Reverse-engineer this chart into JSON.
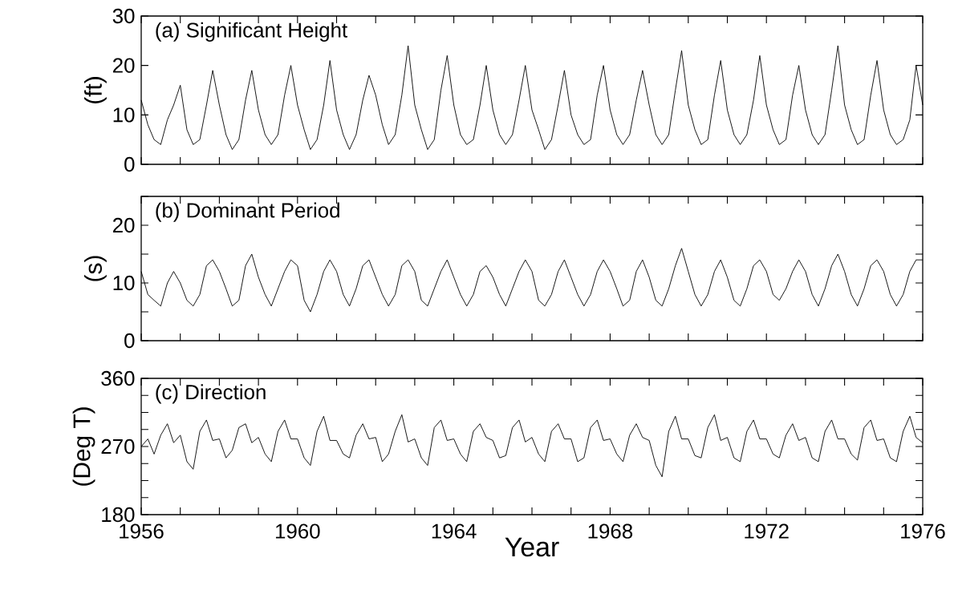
{
  "chart_data": [
    {
      "type": "line",
      "title": "(a) Significant Height",
      "ylabel": "(ft)",
      "tick_labels": "y",
      "x": [
        1956,
        1956.17,
        1956.33,
        1956.5,
        1956.67,
        1956.83,
        1957,
        1957.17,
        1957.33,
        1957.5,
        1957.67,
        1957.83,
        1958,
        1958.17,
        1958.33,
        1958.5,
        1958.67,
        1958.83,
        1959,
        1959.17,
        1959.33,
        1959.5,
        1959.67,
        1959.83,
        1960,
        1960.17,
        1960.33,
        1960.5,
        1960.67,
        1960.83,
        1961,
        1961.17,
        1961.33,
        1961.5,
        1961.67,
        1961.83,
        1962,
        1962.17,
        1962.33,
        1962.5,
        1962.67,
        1962.83,
        1963,
        1963.17,
        1963.33,
        1963.5,
        1963.67,
        1963.83,
        1964,
        1964.17,
        1964.33,
        1964.5,
        1964.67,
        1964.83,
        1965,
        1965.17,
        1965.33,
        1965.5,
        1965.67,
        1965.83,
        1966,
        1966.17,
        1966.33,
        1966.5,
        1966.67,
        1966.83,
        1967,
        1967.17,
        1967.33,
        1967.5,
        1967.67,
        1967.83,
        1968,
        1968.17,
        1968.33,
        1968.5,
        1968.67,
        1968.83,
        1969,
        1969.17,
        1969.33,
        1969.5,
        1969.67,
        1969.83,
        1970,
        1970.17,
        1970.33,
        1970.5,
        1970.67,
        1970.83,
        1971,
        1971.17,
        1971.33,
        1971.5,
        1971.67,
        1971.83,
        1972,
        1972.17,
        1972.33,
        1972.5,
        1972.67,
        1972.83,
        1973,
        1973.17,
        1973.33,
        1973.5,
        1973.67,
        1973.83,
        1974,
        1974.17,
        1974.33,
        1974.5,
        1974.67,
        1974.83,
        1975,
        1975.17,
        1975.33,
        1975.5,
        1975.67,
        1975.83,
        1976
      ],
      "series": [
        {
          "color": "#000000",
          "values": [
            13,
            8,
            5,
            4,
            9,
            12,
            16,
            7,
            4,
            5,
            12,
            19,
            12,
            6,
            3,
            5,
            13,
            19,
            11,
            6,
            4,
            6,
            14,
            20,
            12,
            7,
            3,
            5,
            12,
            21,
            11,
            6,
            3,
            6,
            13,
            18,
            14,
            8,
            4,
            6,
            14,
            24,
            12,
            7,
            3,
            5,
            15,
            22,
            12,
            6,
            4,
            5,
            12,
            20,
            11,
            6,
            4,
            6,
            13,
            20,
            11,
            7,
            3,
            5,
            12,
            19,
            10,
            6,
            4,
            5,
            14,
            20,
            11,
            6,
            4,
            6,
            13,
            19,
            12,
            6,
            4,
            6,
            15,
            23,
            12,
            7,
            4,
            5,
            14,
            21,
            11,
            6,
            4,
            6,
            13,
            22,
            12,
            7,
            4,
            5,
            14,
            20,
            11,
            6,
            4,
            6,
            15,
            24,
            12,
            7,
            4,
            5,
            14,
            21,
            11,
            6,
            4,
            5,
            9,
            20,
            12
          ]
        }
      ],
      "xlim": [
        1956,
        1976
      ],
      "xticks": [
        1956,
        {
          "value": 1957,
          "label": null
        },
        {
          "value": 1958,
          "label": null
        },
        {
          "value": 1959,
          "label": null
        },
        1960,
        {
          "value": 1961,
          "label": null
        },
        {
          "value": 1962,
          "label": null
        },
        {
          "value": 1963,
          "label": null
        },
        1964,
        {
          "value": 1965,
          "label": null
        },
        {
          "value": 1966,
          "label": null
        },
        {
          "value": 1967,
          "label": null
        },
        1968,
        {
          "value": 1969,
          "label": null
        },
        {
          "value": 1970,
          "label": null
        },
        {
          "value": 1971,
          "label": null
        },
        1972,
        {
          "value": 1973,
          "label": null
        },
        {
          "value": 1974,
          "label": null
        },
        {
          "value": 1975,
          "label": null
        },
        1976
      ],
      "ylim": [
        0,
        30
      ],
      "yticks": [
        0,
        10,
        20,
        30
      ]
    },
    {
      "type": "line",
      "title": "(b) Dominant Period",
      "ylabel": "(s)",
      "tick_labels": "y",
      "x": [
        1956,
        1956.17,
        1956.33,
        1956.5,
        1956.67,
        1956.83,
        1957,
        1957.17,
        1957.33,
        1957.5,
        1957.67,
        1957.83,
        1958,
        1958.17,
        1958.33,
        1958.5,
        1958.67,
        1958.83,
        1959,
        1959.17,
        1959.33,
        1959.5,
        1959.67,
        1959.83,
        1960,
        1960.17,
        1960.33,
        1960.5,
        1960.67,
        1960.83,
        1961,
        1961.17,
        1961.33,
        1961.5,
        1961.67,
        1961.83,
        1962,
        1962.17,
        1962.33,
        1962.5,
        1962.67,
        1962.83,
        1963,
        1963.17,
        1963.33,
        1963.5,
        1963.67,
        1963.83,
        1964,
        1964.17,
        1964.33,
        1964.5,
        1964.67,
        1964.83,
        1965,
        1965.17,
        1965.33,
        1965.5,
        1965.67,
        1965.83,
        1966,
        1966.17,
        1966.33,
        1966.5,
        1966.67,
        1966.83,
        1967,
        1967.17,
        1967.33,
        1967.5,
        1967.67,
        1967.83,
        1968,
        1968.17,
        1968.33,
        1968.5,
        1968.67,
        1968.83,
        1969,
        1969.17,
        1969.33,
        1969.5,
        1969.67,
        1969.83,
        1970,
        1970.17,
        1970.33,
        1970.5,
        1970.67,
        1970.83,
        1971,
        1971.17,
        1971.33,
        1971.5,
        1971.67,
        1971.83,
        1972,
        1972.17,
        1972.33,
        1972.5,
        1972.67,
        1972.83,
        1973,
        1973.17,
        1973.33,
        1973.5,
        1973.67,
        1973.83,
        1974,
        1974.17,
        1974.33,
        1974.5,
        1974.67,
        1974.83,
        1975,
        1975.17,
        1975.33,
        1975.5,
        1975.67,
        1975.83,
        1976
      ],
      "series": [
        {
          "color": "#000000",
          "values": [
            12,
            8,
            7,
            6,
            10,
            12,
            10,
            7,
            6,
            8,
            13,
            14,
            12,
            9,
            6,
            7,
            13,
            15,
            11,
            8,
            6,
            9,
            12,
            14,
            13,
            7,
            5,
            8,
            12,
            14,
            12,
            8,
            6,
            9,
            13,
            14,
            11,
            8,
            6,
            8,
            13,
            14,
            12,
            7,
            6,
            9,
            12,
            14,
            11,
            8,
            6,
            8,
            12,
            13,
            11,
            8,
            6,
            9,
            12,
            14,
            12,
            7,
            6,
            8,
            12,
            14,
            11,
            8,
            6,
            8,
            12,
            14,
            12,
            9,
            6,
            7,
            12,
            14,
            11,
            7,
            6,
            9,
            13,
            16,
            12,
            8,
            6,
            8,
            12,
            14,
            11,
            7,
            6,
            9,
            13,
            14,
            12,
            8,
            7,
            9,
            12,
            14,
            12,
            8,
            6,
            9,
            13,
            15,
            12,
            8,
            6,
            9,
            13,
            14,
            12,
            8,
            6,
            8,
            12,
            14,
            14
          ]
        }
      ],
      "xlim": [
        1956,
        1976
      ],
      "xticks": [
        1956,
        {
          "value": 1957,
          "label": null
        },
        {
          "value": 1958,
          "label": null
        },
        {
          "value": 1959,
          "label": null
        },
        1960,
        {
          "value": 1961,
          "label": null
        },
        {
          "value": 1962,
          "label": null
        },
        {
          "value": 1963,
          "label": null
        },
        1964,
        {
          "value": 1965,
          "label": null
        },
        {
          "value": 1966,
          "label": null
        },
        {
          "value": 1967,
          "label": null
        },
        1968,
        {
          "value": 1969,
          "label": null
        },
        {
          "value": 1970,
          "label": null
        },
        {
          "value": 1971,
          "label": null
        },
        1972,
        {
          "value": 1973,
          "label": null
        },
        {
          "value": 1974,
          "label": null
        },
        {
          "value": 1975,
          "label": null
        },
        1976
      ],
      "ylim": [
        0,
        25
      ],
      "yticks": [
        0,
        {
          "value": 5,
          "label": null
        },
        10,
        {
          "value": 15,
          "label": null
        },
        20,
        {
          "value": 25,
          "label": null
        }
      ]
    },
    {
      "type": "line",
      "title": "(c) Direction",
      "ylabel": "(Deg T)",
      "xlabel": "Year",
      "x": [
        1956,
        1956.17,
        1956.33,
        1956.5,
        1956.67,
        1956.83,
        1957,
        1957.17,
        1957.33,
        1957.5,
        1957.67,
        1957.83,
        1958,
        1958.17,
        1958.33,
        1958.5,
        1958.67,
        1958.83,
        1959,
        1959.17,
        1959.33,
        1959.5,
        1959.67,
        1959.83,
        1960,
        1960.17,
        1960.33,
        1960.5,
        1960.67,
        1960.83,
        1961,
        1961.17,
        1961.33,
        1961.5,
        1961.67,
        1961.83,
        1962,
        1962.17,
        1962.33,
        1962.5,
        1962.67,
        1962.83,
        1963,
        1963.17,
        1963.33,
        1963.5,
        1963.67,
        1963.83,
        1964,
        1964.17,
        1964.33,
        1964.5,
        1964.67,
        1964.83,
        1965,
        1965.17,
        1965.33,
        1965.5,
        1965.67,
        1965.83,
        1966,
        1966.17,
        1966.33,
        1966.5,
        1966.67,
        1966.83,
        1967,
        1967.17,
        1967.33,
        1967.5,
        1967.67,
        1967.83,
        1968,
        1968.17,
        1968.33,
        1968.5,
        1968.67,
        1968.83,
        1969,
        1969.17,
        1969.33,
        1969.5,
        1969.67,
        1969.83,
        1970,
        1970.17,
        1970.33,
        1970.5,
        1970.67,
        1970.83,
        1971,
        1971.17,
        1971.33,
        1971.5,
        1971.67,
        1971.83,
        1972,
        1972.17,
        1972.33,
        1972.5,
        1972.67,
        1972.83,
        1973,
        1973.17,
        1973.33,
        1973.5,
        1973.67,
        1973.83,
        1974,
        1974.17,
        1974.33,
        1974.5,
        1974.67,
        1974.83,
        1975,
        1975.17,
        1975.33,
        1975.5,
        1975.67,
        1975.83,
        1976
      ],
      "series": [
        {
          "color": "#000000",
          "values": [
            270,
            280,
            260,
            285,
            300,
            275,
            285,
            250,
            240,
            290,
            305,
            278,
            280,
            255,
            265,
            295,
            300,
            275,
            282,
            260,
            250,
            290,
            305,
            280,
            280,
            255,
            245,
            290,
            310,
            278,
            278,
            260,
            255,
            285,
            300,
            280,
            282,
            250,
            260,
            290,
            312,
            276,
            280,
            255,
            245,
            295,
            305,
            278,
            280,
            260,
            250,
            290,
            300,
            282,
            278,
            255,
            258,
            295,
            305,
            276,
            282,
            260,
            250,
            290,
            300,
            280,
            280,
            250,
            255,
            295,
            305,
            278,
            280,
            260,
            250,
            285,
            300,
            282,
            278,
            245,
            230,
            290,
            310,
            280,
            280,
            258,
            255,
            295,
            312,
            278,
            282,
            255,
            250,
            290,
            305,
            280,
            280,
            260,
            255,
            285,
            300,
            278,
            282,
            255,
            250,
            290,
            305,
            280,
            280,
            260,
            252,
            295,
            305,
            278,
            280,
            255,
            250,
            290,
            310,
            282,
            275
          ]
        }
      ],
      "xlim": [
        1956,
        1976
      ],
      "xticks": [
        1956,
        {
          "value": 1957,
          "label": null
        },
        {
          "value": 1958,
          "label": null
        },
        {
          "value": 1959,
          "label": null
        },
        1960,
        {
          "value": 1961,
          "label": null
        },
        {
          "value": 1962,
          "label": null
        },
        {
          "value": 1963,
          "label": null
        },
        1964,
        {
          "value": 1965,
          "label": null
        },
        {
          "value": 1966,
          "label": null
        },
        {
          "value": 1967,
          "label": null
        },
        1968,
        {
          "value": 1969,
          "label": null
        },
        {
          "value": 1970,
          "label": null
        },
        {
          "value": 1971,
          "label": null
        },
        1972,
        {
          "value": 1973,
          "label": null
        },
        {
          "value": 1974,
          "label": null
        },
        {
          "value": 1975,
          "label": null
        },
        1976
      ],
      "ylim": [
        180,
        360
      ],
      "yticks": [
        180,
        {
          "value": 202.5,
          "label": null
        },
        {
          "value": 225,
          "label": null
        },
        {
          "value": 247.5,
          "label": null
        },
        270,
        {
          "value": 292.5,
          "label": null
        },
        {
          "value": 315,
          "label": null
        },
        {
          "value": 337.5,
          "label": null
        },
        360
      ]
    }
  ]
}
